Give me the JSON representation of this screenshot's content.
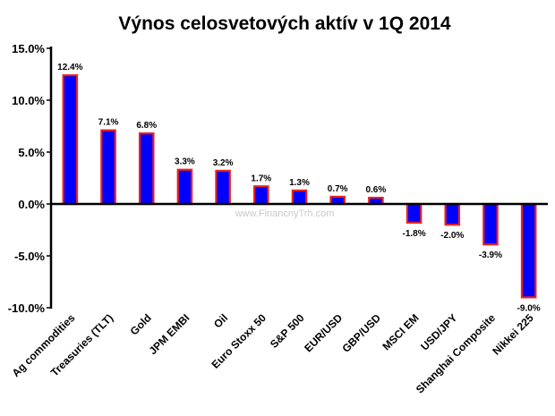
{
  "chart_data": {
    "type": "bar",
    "title": "Výnos celosvetových aktív v 1Q 2014",
    "categories": [
      "Ag commodities",
      "Treasuries (TLT)",
      "Gold",
      "JPM EMBI",
      "Oil",
      "Euro Stoxx 50",
      "S&P 500",
      "EUR/USD",
      "GBP/USD",
      "MSCI EM",
      "USD/JPY",
      "Shanghai Composite",
      "Nikkei 225"
    ],
    "values": [
      12.4,
      7.1,
      6.8,
      3.3,
      3.2,
      1.7,
      1.3,
      0.7,
      0.6,
      -1.8,
      -2.0,
      -3.9,
      -9.0
    ],
    "data_labels": [
      "12.4%",
      "7.1%",
      "6.8%",
      "3.3%",
      "3.2%",
      "1.7%",
      "1.3%",
      "0.7%",
      "0.6%",
      "-1.8%",
      "-2.0%",
      "-3.9%",
      "-9.0%"
    ],
    "yticks": [
      15,
      10,
      5,
      0,
      -5,
      -10
    ],
    "ytick_labels": [
      "15.0%",
      "10.0%",
      "5.0%",
      "0.0%",
      "-5.0%",
      "-10.0%"
    ],
    "ylim": [
      -10,
      15
    ],
    "grid": false,
    "xlabel": "",
    "ylabel": "",
    "bar_fill_color": "#0000FF",
    "bar_border_color": "#E8211E",
    "watermark": "www.FinancnyTrh.com"
  }
}
